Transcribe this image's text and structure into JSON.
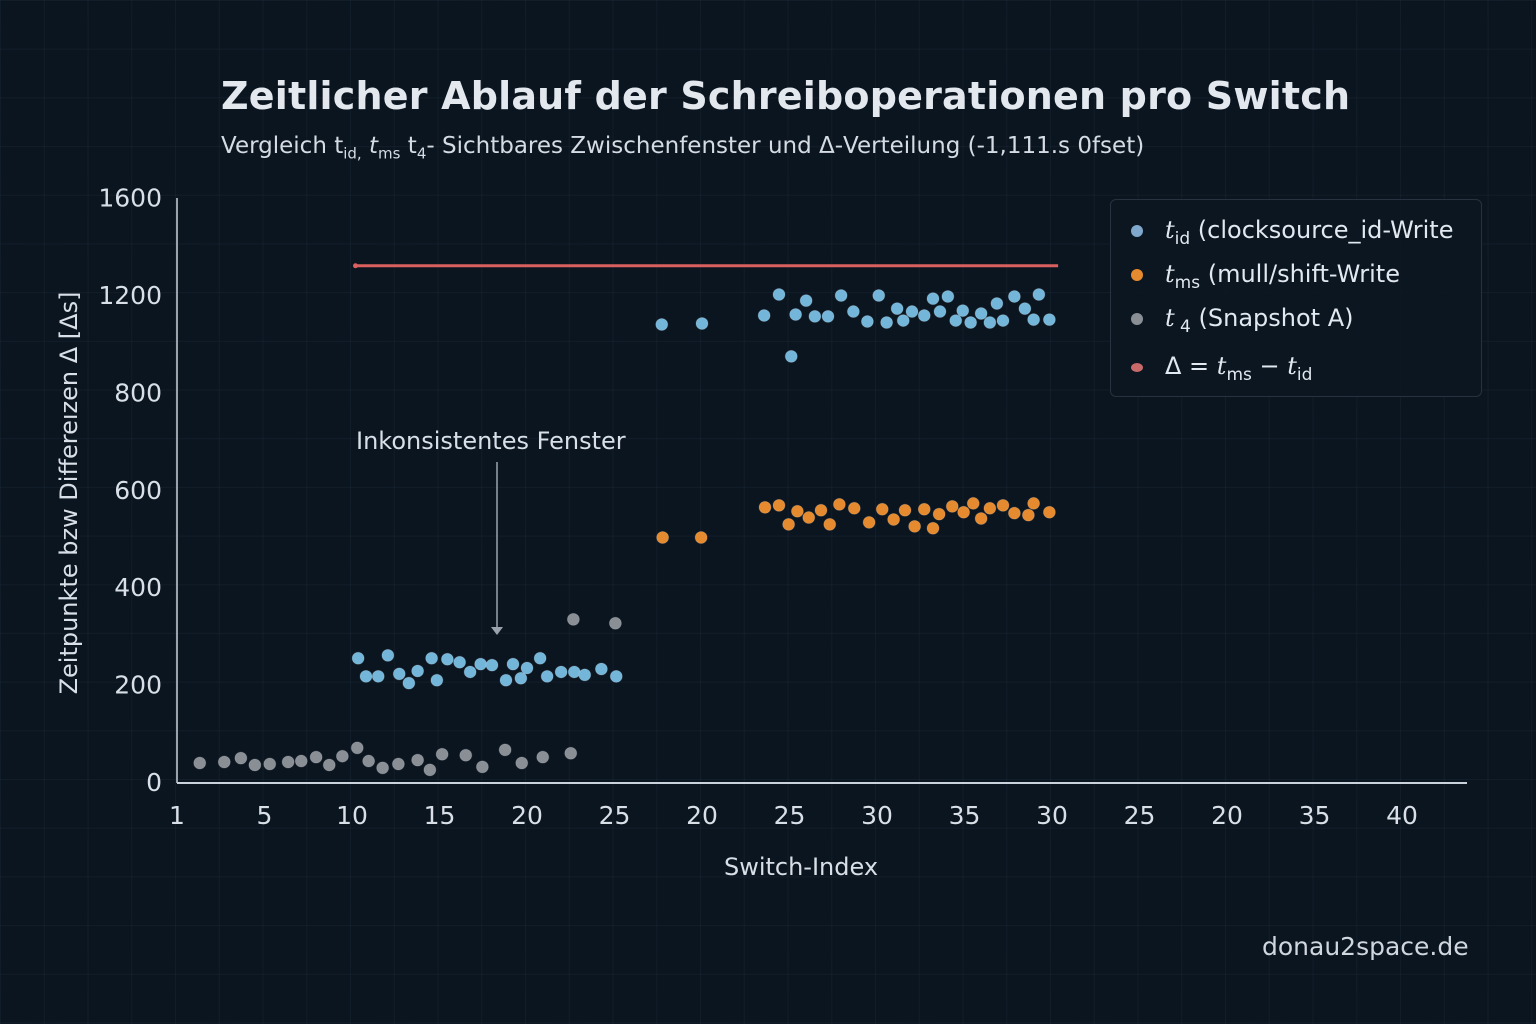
{
  "colors": {
    "t_id": "#74b6d9",
    "t_ms": "#e58a2e",
    "t4": "#8a8f96",
    "delta": "#d9605e"
  },
  "chart_data": {
    "type": "scatter",
    "title": "Zeitlicher Ablauf der Schreiboperationen pro Switch",
    "subtitle": {
      "prefix": "Vergleich t",
      "s1": "id,",
      "mid1": " t",
      "s2": "ms",
      "mid2": "  t",
      "s3": "4",
      "rest": "- Sichtbares Zwischenfenster und Δ-Verteilung (-1,111.s 0fset)"
    },
    "xlabel": "Switch-Index",
    "ylabel": "Zeitpunkte bzw  Differeızen Δ [Δs]",
    "x_note": "x values are positions along the axis in tick-slot units (tick labels are non-monotonic as printed)",
    "xticks": [
      "1",
      "5",
      "10",
      "15",
      "20",
      "25",
      "20",
      "25",
      "30",
      "35",
      "30",
      "25",
      "20",
      "35",
      "40"
    ],
    "yticks": [
      0,
      200,
      400,
      600,
      800,
      1200,
      1600
    ],
    "legend_position": "top-right",
    "legend": [
      {
        "sym": "t",
        "sub": "id",
        "text": " (clocksource_id-Write"
      },
      {
        "sym": "t",
        "sub": "ms",
        "text": " (mull/shift-Write"
      },
      {
        "sym": "t",
        "sub": " 4",
        "text": "  (Snapshot A)"
      },
      {
        "pre": "Δ = ",
        "sym": "t",
        "sub": "ms",
        "mid": " − ",
        "sym2": "t",
        "sub2": "id"
      }
    ],
    "annotation": "Inkonsistentes Fenster",
    "series": [
      {
        "name": "t4",
        "points": [
          [
            0.26,
            39
          ],
          [
            0.54,
            41
          ],
          [
            0.73,
            49
          ],
          [
            0.89,
            35
          ],
          [
            1.06,
            37
          ],
          [
            1.27,
            41
          ],
          [
            1.42,
            43
          ],
          [
            1.59,
            51
          ],
          [
            1.74,
            35
          ],
          [
            1.89,
            53
          ],
          [
            2.06,
            70
          ],
          [
            2.19,
            43
          ],
          [
            2.35,
            29
          ],
          [
            2.53,
            37
          ],
          [
            2.75,
            45
          ],
          [
            2.89,
            25
          ],
          [
            3.03,
            57
          ],
          [
            3.3,
            55
          ],
          [
            3.49,
            31
          ],
          [
            3.75,
            66
          ],
          [
            3.94,
            39
          ],
          [
            4.18,
            51
          ],
          [
            4.5,
            59
          ],
          [
            4.53,
            334
          ],
          [
            5.01,
            326
          ]
        ]
      },
      {
        "name": "t_id",
        "points": [
          [
            2.07,
            254
          ],
          [
            2.16,
            217
          ],
          [
            2.3,
            217
          ],
          [
            2.41,
            260
          ],
          [
            2.54,
            222
          ],
          [
            2.65,
            203
          ],
          [
            2.75,
            228
          ],
          [
            2.91,
            254
          ],
          [
            2.97,
            209
          ],
          [
            3.09,
            252
          ],
          [
            3.23,
            246
          ],
          [
            3.35,
            226
          ],
          [
            3.47,
            242
          ],
          [
            3.6,
            240
          ],
          [
            3.76,
            209
          ],
          [
            3.84,
            242
          ],
          [
            3.93,
            213
          ],
          [
            4.0,
            234
          ],
          [
            4.15,
            254
          ],
          [
            4.23,
            217
          ],
          [
            4.39,
            226
          ],
          [
            4.54,
            226
          ],
          [
            4.66,
            220
          ],
          [
            4.85,
            232
          ],
          [
            5.02,
            217
          ],
          [
            5.54,
            1079
          ],
          [
            6.0,
            1083
          ],
          [
            6.71,
            1116
          ],
          [
            6.88,
            1202
          ],
          [
            7.02,
            948
          ],
          [
            7.07,
            1120
          ],
          [
            7.19,
            1177
          ],
          [
            7.29,
            1112
          ],
          [
            7.44,
            1112
          ],
          [
            7.59,
            1198
          ],
          [
            7.73,
            1132
          ],
          [
            7.89,
            1091
          ],
          [
            8.02,
            1198
          ],
          [
            8.11,
            1087
          ],
          [
            8.23,
            1144
          ],
          [
            8.3,
            1095
          ],
          [
            8.4,
            1132
          ],
          [
            8.54,
            1116
          ],
          [
            8.64,
            1185
          ],
          [
            8.72,
            1132
          ],
          [
            8.81,
            1194
          ],
          [
            8.9,
            1095
          ],
          [
            8.98,
            1136
          ],
          [
            9.07,
            1087
          ],
          [
            9.19,
            1124
          ],
          [
            9.29,
            1087
          ],
          [
            9.37,
            1165
          ],
          [
            9.44,
            1095
          ],
          [
            9.57,
            1194
          ],
          [
            9.69,
            1144
          ],
          [
            9.79,
            1099
          ],
          [
            9.85,
            1202
          ],
          [
            9.97,
            1099
          ]
        ]
      },
      {
        "name": "t_ms",
        "points": [
          [
            5.55,
            502
          ],
          [
            5.99,
            502
          ],
          [
            6.72,
            564
          ],
          [
            6.88,
            568
          ],
          [
            6.99,
            529
          ],
          [
            7.09,
            556
          ],
          [
            7.22,
            543
          ],
          [
            7.36,
            558
          ],
          [
            7.46,
            529
          ],
          [
            7.57,
            570
          ],
          [
            7.74,
            562
          ],
          [
            7.91,
            533
          ],
          [
            8.06,
            560
          ],
          [
            8.19,
            539
          ],
          [
            8.32,
            558
          ],
          [
            8.43,
            525
          ],
          [
            8.54,
            560
          ],
          [
            8.64,
            521
          ],
          [
            8.71,
            550
          ],
          [
            8.86,
            566
          ],
          [
            8.99,
            554
          ],
          [
            9.1,
            572
          ],
          [
            9.19,
            541
          ],
          [
            9.29,
            562
          ],
          [
            9.44,
            568
          ],
          [
            9.57,
            552
          ],
          [
            9.73,
            548
          ],
          [
            9.79,
            572
          ],
          [
            9.97,
            554
          ]
        ]
      },
      {
        "name": "delta",
        "type": "line",
        "points": [
          [
            2.04,
            1320
          ],
          [
            10.07,
            1320
          ]
        ]
      }
    ]
  },
  "watermark": "donau2space.de"
}
